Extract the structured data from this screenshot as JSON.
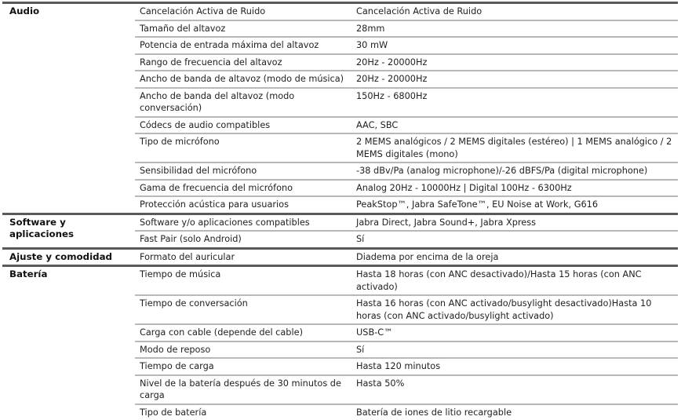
{
  "sections": [
    {
      "title": "Audio",
      "rows": [
        {
          "spec": "Cancelación Activa de Ruido",
          "value": "Cancelación Activa de Ruido"
        },
        {
          "spec": "Tamaño del altavoz",
          "value": "28mm"
        },
        {
          "spec": "Potencia de entrada máxima del altavoz",
          "value": "30 mW"
        },
        {
          "spec": "Rango de frecuencia del altavoz",
          "value": "20Hz - 20000Hz"
        },
        {
          "spec": "Ancho de banda de altavoz (modo de música)",
          "value": "20Hz - 20000Hz"
        },
        {
          "spec": "Ancho de banda del altavoz (modo conversación)",
          "value": "150Hz - 6800Hz"
        },
        {
          "spec": "Códecs de audio compatibles",
          "value": "AAC, SBC"
        },
        {
          "spec": "Tipo de micrófono",
          "value": "2 MEMS analógicos / 2 MEMS digitales (estéreo) | 1 MEMS analógico / 2 MEMS digitales (mono)"
        },
        {
          "spec": "Sensibilidad del micrófono",
          "value": "-38 dBv/Pa (analog microphone)/-26 dBFS/Pa (digital microphone)"
        },
        {
          "spec": "Gama de frecuencia del micrófono",
          "value": "Analog 20Hz - 10000Hz | Digital 100Hz - 6300Hz"
        },
        {
          "spec": "Protección acústica para usuarios",
          "value": "PeakStop™, Jabra SafeTone™, EU Noise at Work, G616"
        }
      ]
    },
    {
      "title": "Software y aplicaciones",
      "rows": [
        {
          "spec": "Software y/o aplicaciones compatibles",
          "value": "Jabra Direct, Jabra Sound+, Jabra Xpress"
        },
        {
          "spec": "Fast Pair (solo Android)",
          "value": "Sí"
        }
      ]
    },
    {
      "title": "Ajuste y comodidad",
      "rows": [
        {
          "spec": "Formato del auricular",
          "value": "Diadema por encima de la oreja"
        }
      ]
    },
    {
      "title": "Batería",
      "rows": [
        {
          "spec": "Tiempo de música",
          "value": "Hasta 18 horas (con ANC desactivado)/Hasta 15 horas (con ANC activado)"
        },
        {
          "spec": "Tiempo de conversación",
          "value": "Hasta 16 horas (con ANC activado/busylight desactivado)Hasta 10 horas (con ANC activado/busylight activado)"
        },
        {
          "spec": "Carga con cable (depende del cable)",
          "value": "USB-C™"
        },
        {
          "spec": "Modo de reposo",
          "value": "Sí"
        },
        {
          "spec": "Tiempo de carga",
          "value": "Hasta 120 minutos"
        },
        {
          "spec": "Nivel de la batería después de 30 minutos de carga",
          "value": "Hasta 50%"
        },
        {
          "spec": "Tipo de batería",
          "value": "Batería de iones de litio recargable"
        }
      ]
    }
  ]
}
